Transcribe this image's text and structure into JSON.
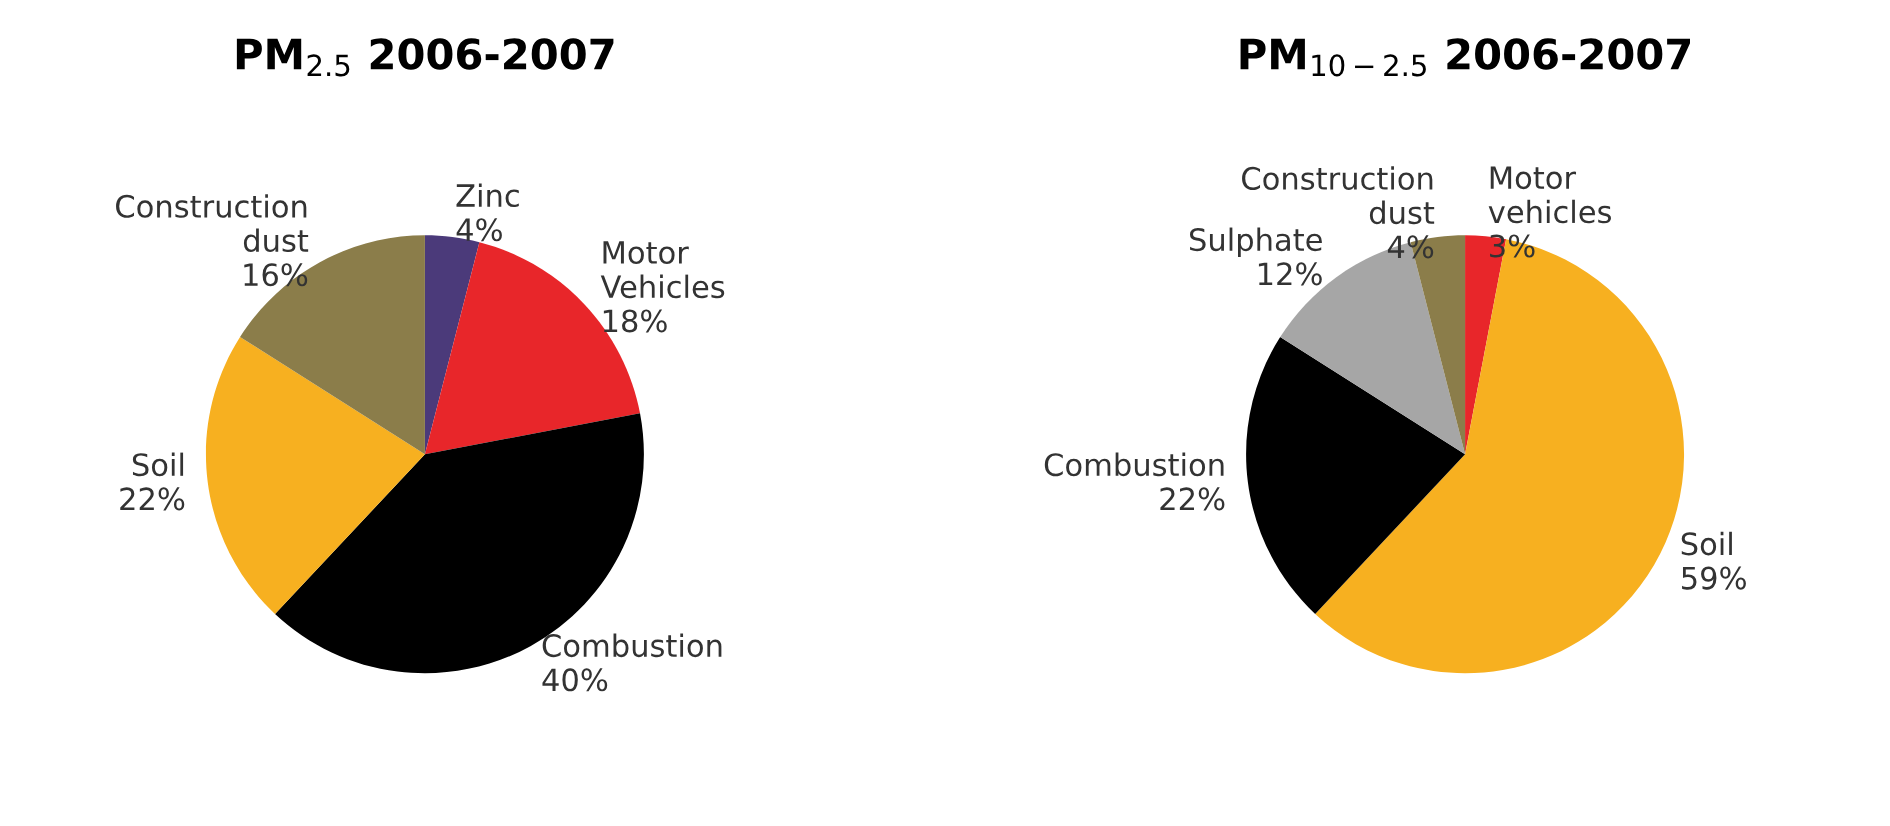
{
  "chart_data": [
    {
      "type": "pie",
      "title": "PM$_{2.5}$ 2006-2007",
      "categories": [
        "Zinc",
        "Motor\nVehicles",
        "Combustion",
        "Soil",
        "Construction\ndust"
      ],
      "values": [
        4,
        18,
        40,
        22,
        16
      ],
      "value_labels": [
        "4%",
        "18%",
        "40%",
        "22%",
        "16%"
      ],
      "colors": [
        "#4b3a7a",
        "#e8262a",
        "#000000",
        "#f7b020",
        "#8b7d4a"
      ]
    },
    {
      "type": "pie",
      "title": "PM$_{10−2.5}$ 2006-2007",
      "categories": [
        "Motor\nvehicles",
        "Soil",
        "Combustion",
        "Sulphate",
        "Construction\ndust"
      ],
      "values": [
        3,
        59,
        22,
        12,
        4
      ],
      "value_labels": [
        "3%",
        "59%",
        "22%",
        "12%",
        "4%"
      ],
      "colors": [
        "#e8262a",
        "#f7b020",
        "#000000",
        "#a6a6a6",
        "#8b7d4a"
      ]
    }
  ]
}
